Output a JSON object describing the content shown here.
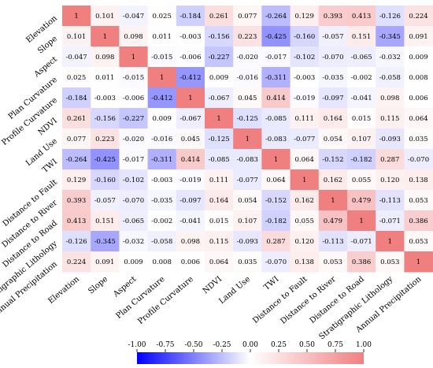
{
  "chart_data": {
    "type": "heatmap",
    "title": "",
    "xlabel": "",
    "ylabel": "",
    "variables": [
      "Elevation",
      "Slope",
      "Aspect",
      "Plan Curvature",
      "Profile Curvature",
      "NDVI",
      "Land Use",
      "TWI",
      "Distance to Fault",
      "Distance to River",
      "Distance to Road",
      "Stratigraphic Lithology",
      "Annual Precipitation"
    ],
    "values": [
      [
        1,
        0.101,
        -0.047,
        0.025,
        -0.184,
        0.261,
        0.077,
        -0.264,
        0.129,
        0.393,
        0.413,
        -0.126,
        0.224
      ],
      [
        0.101,
        1,
        0.098,
        0.011,
        -0.003,
        -0.156,
        0.223,
        -0.425,
        -0.16,
        -0.057,
        0.151,
        -0.345,
        0.091
      ],
      [
        -0.047,
        0.098,
        1,
        -0.015,
        -0.006,
        -0.227,
        -0.02,
        -0.017,
        -0.102,
        -0.07,
        -0.065,
        -0.032,
        0.009
      ],
      [
        0.025,
        0.011,
        -0.015,
        1,
        -0.412,
        0.009,
        -0.016,
        -0.311,
        -0.003,
        -0.035,
        -0.002,
        -0.058,
        0.008
      ],
      [
        -0.184,
        -0.003,
        -0.006,
        -0.412,
        1,
        -0.067,
        0.045,
        0.414,
        -0.019,
        -0.097,
        -0.041,
        0.098,
        0.006
      ],
      [
        0.261,
        -0.156,
        -0.227,
        0.009,
        -0.067,
        1,
        -0.125,
        -0.085,
        0.111,
        0.164,
        0.015,
        0.115,
        0.064
      ],
      [
        0.077,
        0.223,
        -0.02,
        -0.016,
        0.045,
        -0.125,
        1,
        -0.083,
        -0.077,
        0.054,
        0.107,
        -0.093,
        0.035
      ],
      [
        -0.264,
        -0.425,
        -0.017,
        -0.311,
        0.414,
        -0.085,
        -0.083,
        1,
        0.064,
        -0.152,
        -0.182,
        0.287,
        -0.07
      ],
      [
        0.129,
        -0.16,
        -0.102,
        -0.003,
        -0.019,
        0.111,
        -0.077,
        0.064,
        1,
        0.162,
        0.055,
        0.12,
        0.138
      ],
      [
        0.393,
        -0.057,
        -0.07,
        -0.035,
        -0.097,
        0.164,
        0.054,
        -0.152,
        0.162,
        1,
        0.479,
        -0.113,
        0.053
      ],
      [
        0.413,
        0.151,
        -0.065,
        -0.002,
        -0.041,
        0.015,
        0.107,
        -0.182,
        0.055,
        0.479,
        1,
        -0.071,
        0.386
      ],
      [
        -0.126,
        -0.345,
        -0.032,
        -0.058,
        0.098,
        0.115,
        -0.093,
        0.287,
        0.12,
        -0.113,
        -0.071,
        1,
        0.053
      ],
      [
        0.224,
        0.091,
        0.009,
        0.008,
        0.006,
        0.064,
        0.035,
        -0.07,
        0.138,
        0.053,
        0.386,
        0.053,
        1
      ]
    ],
    "colorbar": {
      "min": -1.0,
      "max": 1.0,
      "ticks": [
        "-1.00",
        "-0.75",
        "-0.50",
        "-0.25",
        "0.00",
        "0.25",
        "0.50",
        "0.75",
        "1.00"
      ],
      "orientation": "horizontal",
      "placement": "bottom"
    },
    "colors": {
      "negative": "#0000ff",
      "zero": "#ffffff",
      "positive": "#f08080"
    },
    "legend": "none",
    "grid": false
  }
}
